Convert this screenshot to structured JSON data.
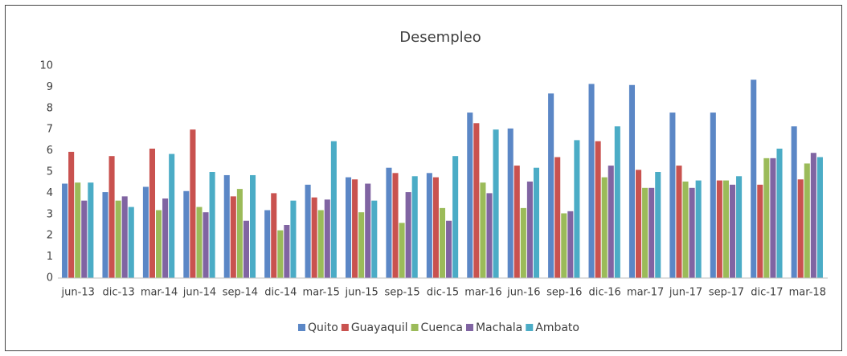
{
  "chart_data": {
    "type": "bar",
    "title": "Desempleo",
    "categories": [
      "jun-13",
      "dic-13",
      "mar-14",
      "jun-14",
      "sep-14",
      "dic-14",
      "mar-15",
      "jun-15",
      "sep-15",
      "dic-15",
      "mar-16",
      "jun-16",
      "sep-16",
      "dic-16",
      "mar-17",
      "jun-17",
      "sep-17",
      "dic-17",
      "mar-18"
    ],
    "series": [
      {
        "name": "Quito",
        "color": "#5b87c6",
        "values": [
          4.45,
          4.05,
          4.3,
          4.1,
          4.85,
          3.2,
          4.4,
          4.75,
          5.2,
          4.95,
          7.8,
          7.05,
          8.7,
          9.15,
          9.1,
          7.8,
          7.8,
          9.35,
          7.15
        ]
      },
      {
        "name": "Guayaquil",
        "color": "#c9524f",
        "values": [
          5.95,
          5.75,
          6.1,
          7.0,
          3.85,
          4.0,
          3.8,
          4.65,
          4.95,
          4.75,
          7.3,
          5.3,
          5.7,
          6.45,
          5.1,
          5.3,
          4.6,
          4.4,
          4.65
        ]
      },
      {
        "name": "Cuenca",
        "color": "#9bbb59",
        "values": [
          4.5,
          3.65,
          3.2,
          3.35,
          4.2,
          2.25,
          3.2,
          3.1,
          2.6,
          3.3,
          4.5,
          3.3,
          3.05,
          4.75,
          4.25,
          4.55,
          4.6,
          5.65,
          5.4
        ]
      },
      {
        "name": "Machala",
        "color": "#8064a2",
        "values": [
          3.65,
          3.85,
          3.75,
          3.1,
          2.7,
          2.5,
          3.7,
          4.45,
          4.05,
          2.7,
          4.0,
          4.55,
          3.15,
          5.3,
          4.25,
          4.25,
          4.4,
          5.65,
          5.9
        ]
      },
      {
        "name": "Ambato",
        "color": "#4bacc6",
        "values": [
          4.5,
          3.35,
          5.85,
          5.0,
          4.85,
          3.65,
          6.45,
          3.65,
          4.8,
          5.75,
          7.0,
          5.2,
          6.5,
          7.15,
          5.0,
          4.6,
          4.8,
          6.1,
          5.7
        ]
      }
    ],
    "ylim": [
      0,
      10
    ],
    "yticks": [
      0,
      1,
      2,
      3,
      4,
      5,
      6,
      7,
      8,
      9,
      10
    ],
    "grid": false,
    "legend": "bottom"
  }
}
